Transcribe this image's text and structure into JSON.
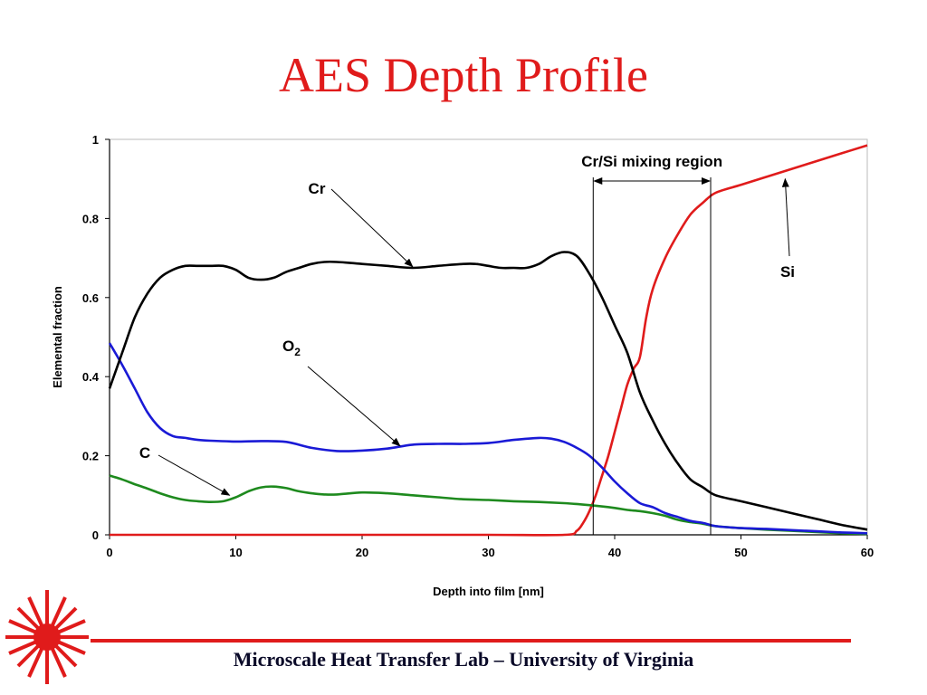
{
  "slide": {
    "title": "AES Depth Profile",
    "footer": "Microscale Heat Transfer Lab – University of Virginia",
    "accent_color": "#e01b1b",
    "logo_icon": "sunburst-logo-icon"
  },
  "chart_data": {
    "type": "line",
    "xlabel": "Depth into film [nm]",
    "ylabel": "Elemental fraction",
    "xlim": [
      0,
      60
    ],
    "ylim": [
      0,
      1
    ],
    "xticks": [
      "0",
      "10",
      "20",
      "30",
      "40",
      "50",
      "60"
    ],
    "yticks": [
      "0",
      "0.2",
      "0.4",
      "0.6",
      "0.8",
      "1"
    ],
    "grid": false,
    "legend": "none",
    "series": [
      {
        "name": "Cr",
        "color": "#000000",
        "x": [
          0,
          1,
          2,
          3,
          4,
          5,
          6,
          7,
          8,
          9,
          10,
          11,
          12,
          13,
          14,
          15,
          16,
          17,
          18,
          20,
          22,
          24,
          26,
          28,
          29,
          30,
          31,
          32,
          33,
          34,
          35,
          36,
          37,
          38,
          39,
          40,
          41,
          42,
          43,
          44,
          45,
          46,
          47,
          48,
          50,
          52,
          54,
          56,
          58,
          60
        ],
        "y": [
          0.37,
          0.46,
          0.55,
          0.61,
          0.65,
          0.67,
          0.68,
          0.68,
          0.68,
          0.68,
          0.67,
          0.65,
          0.645,
          0.65,
          0.665,
          0.675,
          0.685,
          0.69,
          0.69,
          0.685,
          0.68,
          0.675,
          0.68,
          0.685,
          0.685,
          0.68,
          0.675,
          0.675,
          0.675,
          0.685,
          0.705,
          0.715,
          0.705,
          0.66,
          0.6,
          0.53,
          0.46,
          0.36,
          0.29,
          0.23,
          0.18,
          0.14,
          0.12,
          0.1,
          0.085,
          0.07,
          0.055,
          0.04,
          0.025,
          0.013
        ]
      },
      {
        "name": "O2",
        "color": "#1a1ad6",
        "x": [
          0,
          1,
          2,
          3,
          4,
          5,
          6,
          7,
          8,
          10,
          12,
          14,
          16,
          18,
          20,
          22,
          24,
          26,
          28,
          30,
          32,
          34,
          35,
          36,
          37,
          38,
          39,
          40,
          41,
          42,
          43,
          44,
          45,
          46,
          47,
          48,
          50,
          52,
          54,
          56,
          58,
          60
        ],
        "y": [
          0.485,
          0.43,
          0.37,
          0.31,
          0.27,
          0.25,
          0.245,
          0.24,
          0.238,
          0.236,
          0.237,
          0.235,
          0.22,
          0.212,
          0.213,
          0.218,
          0.228,
          0.23,
          0.23,
          0.232,
          0.24,
          0.245,
          0.243,
          0.235,
          0.22,
          0.2,
          0.17,
          0.135,
          0.105,
          0.08,
          0.07,
          0.055,
          0.045,
          0.035,
          0.03,
          0.022,
          0.017,
          0.015,
          0.012,
          0.009,
          0.006,
          0.004
        ]
      },
      {
        "name": "C",
        "color": "#1e8a1e",
        "x": [
          0,
          1,
          2,
          3,
          4,
          5,
          6,
          7,
          8,
          9,
          10,
          11,
          12,
          13,
          14,
          15,
          16,
          17,
          18,
          20,
          22,
          24,
          26,
          28,
          30,
          32,
          34,
          36,
          38,
          40,
          41,
          42,
          43,
          44,
          45,
          46,
          47,
          48,
          50,
          52,
          54,
          56,
          58,
          60
        ],
        "y": [
          0.15,
          0.14,
          0.128,
          0.117,
          0.105,
          0.095,
          0.088,
          0.085,
          0.083,
          0.085,
          0.095,
          0.11,
          0.12,
          0.122,
          0.118,
          0.11,
          0.105,
          0.102,
          0.102,
          0.107,
          0.105,
          0.1,
          0.095,
          0.09,
          0.088,
          0.085,
          0.083,
          0.08,
          0.075,
          0.068,
          0.063,
          0.06,
          0.055,
          0.048,
          0.038,
          0.032,
          0.028,
          0.022,
          0.017,
          0.013,
          0.01,
          0.007,
          0.004,
          0.002
        ]
      },
      {
        "name": "Si",
        "color": "#e01b1b",
        "x": [
          0,
          10,
          20,
          30,
          36,
          37,
          37.5,
          38,
          38.5,
          39,
          39.5,
          40,
          40.5,
          41,
          41.5,
          42,
          42.5,
          43,
          44,
          45,
          46,
          47,
          48,
          50,
          52,
          54,
          56,
          58,
          60
        ],
        "y": [
          0,
          0,
          0,
          0,
          0,
          0.01,
          0.03,
          0.06,
          0.1,
          0.15,
          0.2,
          0.26,
          0.32,
          0.38,
          0.42,
          0.45,
          0.55,
          0.62,
          0.7,
          0.76,
          0.81,
          0.84,
          0.865,
          0.885,
          0.905,
          0.925,
          0.945,
          0.965,
          0.985
        ]
      }
    ],
    "annotations": [
      {
        "text": "Cr/Si mixing region",
        "type": "bracket",
        "x_start": 38.3,
        "x_end": 47.6
      },
      {
        "text": "Cr",
        "points_to": [
          24,
          0.678
        ]
      },
      {
        "text": "O2",
        "points_to": [
          23,
          0.225
        ]
      },
      {
        "text": "C",
        "points_to": [
          9.5,
          0.1
        ]
      },
      {
        "text": "Si",
        "points_to": [
          53.5,
          0.9
        ]
      }
    ]
  }
}
